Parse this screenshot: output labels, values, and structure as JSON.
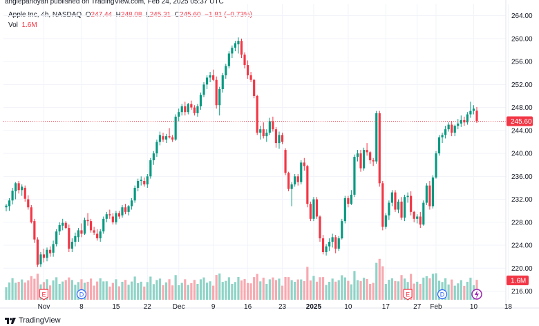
{
  "header": {
    "publisher": "anglepanoyan published on TradingView.com, Feb 24, 2025 05:37 UTC"
  },
  "legend": {
    "symbol": "Apple Inc, 4h, NASDAQ",
    "o_label": "O",
    "o_value": "247.44",
    "h_label": "H",
    "h_value": "248.08",
    "l_label": "L",
    "l_value": "245.31",
    "c_label": "C",
    "c_value": "245.60",
    "change": "−1.81 (−0.73%)",
    "vol_label": "Vol",
    "vol_value": "1.6M"
  },
  "price_axis": {
    "ticks": [
      "264.00",
      "260.00",
      "256.00",
      "252.00",
      "248.00",
      "244.00",
      "240.00",
      "236.00",
      "232.00",
      "228.00",
      "224.00",
      "220.00",
      "216.00"
    ],
    "last_price": "245.60",
    "last_volume": "1.6M"
  },
  "time_axis": {
    "labels": [
      "Nov",
      "8",
      "15",
      "22",
      "Dec",
      "9",
      "16",
      "23",
      "2025",
      "10",
      "17",
      "27",
      "Feb",
      "10",
      "18"
    ]
  },
  "events": [
    "E",
    "D",
    "E",
    "D"
  ],
  "colors": {
    "up": "#089981",
    "down": "#f23645",
    "vol_up": "#8fd3c7",
    "vol_down": "#f7a9b0"
  },
  "chart_data": {
    "type": "candlestick",
    "ylim": [
      214.5,
      266
    ],
    "ohlc": [
      [
        230.6,
        231.2,
        229.9,
        230.9
      ],
      [
        230.8,
        232.2,
        230.0,
        231.8
      ],
      [
        231.8,
        234.0,
        231.1,
        233.5
      ],
      [
        233.4,
        235.0,
        232.0,
        234.8
      ],
      [
        234.8,
        235.2,
        233.0,
        233.6
      ],
      [
        233.6,
        234.6,
        232.6,
        234.2
      ],
      [
        234.0,
        234.4,
        231.6,
        232.1
      ],
      [
        232.0,
        232.7,
        230.2,
        230.6
      ],
      [
        230.6,
        231.0,
        227.8,
        228.0
      ],
      [
        228.2,
        228.6,
        224.4,
        225.0
      ],
      [
        225.0,
        225.4,
        220.2,
        220.6
      ],
      [
        220.7,
        222.8,
        220.2,
        222.4
      ],
      [
        222.4,
        223.4,
        221.0,
        221.8
      ],
      [
        221.8,
        223.6,
        221.2,
        223.2
      ],
      [
        223.2,
        223.8,
        222.0,
        222.6
      ],
      [
        222.7,
        224.8,
        222.0,
        224.2
      ],
      [
        224.2,
        226.8,
        223.8,
        226.4
      ],
      [
        226.4,
        228.0,
        225.8,
        227.5
      ],
      [
        227.4,
        228.6,
        226.6,
        227.9
      ],
      [
        227.9,
        228.2,
        226.8,
        227.0
      ],
      [
        227.0,
        227.6,
        222.8,
        223.4
      ],
      [
        223.4,
        225.2,
        222.8,
        224.6
      ],
      [
        224.6,
        226.2,
        223.8,
        225.6
      ],
      [
        225.4,
        227.0,
        224.6,
        226.6
      ],
      [
        226.6,
        227.8,
        225.4,
        226.0
      ],
      [
        226.0,
        228.8,
        225.8,
        228.4
      ],
      [
        228.4,
        229.6,
        227.4,
        228.2
      ],
      [
        228.2,
        228.6,
        226.2,
        226.6
      ],
      [
        226.6,
        227.2,
        225.8,
        226.2
      ],
      [
        226.0,
        226.8,
        224.8,
        225.2
      ],
      [
        225.2,
        226.8,
        224.6,
        226.4
      ],
      [
        226.4,
        229.0,
        226.0,
        228.6
      ],
      [
        228.6,
        229.8,
        228.0,
        229.4
      ],
      [
        229.4,
        230.2,
        228.6,
        229.2
      ],
      [
        229.0,
        229.6,
        227.6,
        228.0
      ],
      [
        228.0,
        230.0,
        227.6,
        229.6
      ],
      [
        229.6,
        230.0,
        228.6,
        229.0
      ],
      [
        229.2,
        231.0,
        228.8,
        230.6
      ],
      [
        230.6,
        231.2,
        229.4,
        229.8
      ],
      [
        229.8,
        231.0,
        229.2,
        230.8
      ],
      [
        230.8,
        232.2,
        230.2,
        231.8
      ],
      [
        231.8,
        234.4,
        231.4,
        234.0
      ],
      [
        234.0,
        235.6,
        233.4,
        235.2
      ],
      [
        235.2,
        236.0,
        234.4,
        235.4
      ],
      [
        235.2,
        235.8,
        234.2,
        234.6
      ],
      [
        234.6,
        236.4,
        234.0,
        236.0
      ],
      [
        236.0,
        239.2,
        235.6,
        238.8
      ],
      [
        238.8,
        240.4,
        238.0,
        240.0
      ],
      [
        240.0,
        242.4,
        239.4,
        242.0
      ],
      [
        242.0,
        243.8,
        241.4,
        243.2
      ],
      [
        243.0,
        243.6,
        242.0,
        242.4
      ],
      [
        242.4,
        243.4,
        241.8,
        243.0
      ],
      [
        243.0,
        244.4,
        242.6,
        242.8
      ],
      [
        242.8,
        243.2,
        242.0,
        242.4
      ],
      [
        242.4,
        246.8,
        242.2,
        246.4
      ],
      [
        246.4,
        247.8,
        245.6,
        247.2
      ],
      [
        247.2,
        248.6,
        246.6,
        248.2
      ],
      [
        248.2,
        249.0,
        246.6,
        247.2
      ],
      [
        247.2,
        248.8,
        246.8,
        248.6
      ],
      [
        248.6,
        249.2,
        247.6,
        248.0
      ],
      [
        248.0,
        248.4,
        246.6,
        247.0
      ],
      [
        247.0,
        248.6,
        246.4,
        248.2
      ],
      [
        248.2,
        250.6,
        247.6,
        250.2
      ],
      [
        250.2,
        252.4,
        249.8,
        252.0
      ],
      [
        252.0,
        253.6,
        251.2,
        253.2
      ],
      [
        253.2,
        254.2,
        252.4,
        253.6
      ],
      [
        253.6,
        254.6,
        252.6,
        252.8
      ],
      [
        252.8,
        253.4,
        247.8,
        248.4
      ],
      [
        248.4,
        251.6,
        246.6,
        251.2
      ],
      [
        251.2,
        254.0,
        250.6,
        253.6
      ],
      [
        253.6,
        255.6,
        253.0,
        255.2
      ],
      [
        255.2,
        257.8,
        254.8,
        257.4
      ],
      [
        257.4,
        258.8,
        256.6,
        258.4
      ],
      [
        258.4,
        259.6,
        257.8,
        259.2
      ],
      [
        259.0,
        260.2,
        257.4,
        259.6
      ],
      [
        259.6,
        260.0,
        256.6,
        257.2
      ],
      [
        257.2,
        257.6,
        254.8,
        255.4
      ],
      [
        255.4,
        256.2,
        253.0,
        253.6
      ],
      [
        253.6,
        254.2,
        252.4,
        252.8
      ],
      [
        252.8,
        253.0,
        249.6,
        250.0
      ],
      [
        250.0,
        250.2,
        243.2,
        243.6
      ],
      [
        243.6,
        244.8,
        242.4,
        244.2
      ],
      [
        244.2,
        245.4,
        242.6,
        243.0
      ],
      [
        243.0,
        244.2,
        242.0,
        243.6
      ],
      [
        243.6,
        246.2,
        243.2,
        245.6
      ],
      [
        245.6,
        246.4,
        243.8,
        244.2
      ],
      [
        244.2,
        244.6,
        241.0,
        241.8
      ],
      [
        241.8,
        243.8,
        240.8,
        243.2
      ],
      [
        243.2,
        243.6,
        241.6,
        242.0
      ],
      [
        240.6,
        240.9,
        236.2,
        236.6
      ],
      [
        236.6,
        236.8,
        233.4,
        233.8
      ],
      [
        233.8,
        235.0,
        230.8,
        234.6
      ],
      [
        234.6,
        236.4,
        234.2,
        236.0
      ],
      [
        236.0,
        236.4,
        234.4,
        235.0
      ],
      [
        235.0,
        238.8,
        234.6,
        238.4
      ],
      [
        238.4,
        239.2,
        237.0,
        237.8
      ],
      [
        237.8,
        238.0,
        230.6,
        231.2
      ],
      [
        231.2,
        231.6,
        228.2,
        228.6
      ],
      [
        228.6,
        232.4,
        228.2,
        232.0
      ],
      [
        232.0,
        232.4,
        228.6,
        229.0
      ],
      [
        229.0,
        229.2,
        224.6,
        225.2
      ],
      [
        225.2,
        225.8,
        222.4,
        222.8
      ],
      [
        222.8,
        224.2,
        222.2,
        223.8
      ],
      [
        223.8,
        225.2,
        223.0,
        224.6
      ],
      [
        224.6,
        226.0,
        223.6,
        225.4
      ],
      [
        225.4,
        225.8,
        222.6,
        223.4
      ],
      [
        223.4,
        225.6,
        223.0,
        225.2
      ],
      [
        225.2,
        228.6,
        225.0,
        228.2
      ],
      [
        228.2,
        232.6,
        227.8,
        232.2
      ],
      [
        232.2,
        232.6,
        230.6,
        231.2
      ],
      [
        231.2,
        233.6,
        231.0,
        232.8
      ],
      [
        232.8,
        239.8,
        232.4,
        239.4
      ],
      [
        239.4,
        240.6,
        238.6,
        240.0
      ],
      [
        240.0,
        240.6,
        236.8,
        237.4
      ],
      [
        237.4,
        241.0,
        237.0,
        240.6
      ],
      [
        240.6,
        241.8,
        239.6,
        240.2
      ],
      [
        240.2,
        240.4,
        238.2,
        238.8
      ],
      [
        238.8,
        239.2,
        237.8,
        238.6
      ],
      [
        238.6,
        247.4,
        238.2,
        247.0
      ],
      [
        247.0,
        247.4,
        234.2,
        234.8
      ],
      [
        234.8,
        235.2,
        226.6,
        227.2
      ],
      [
        227.2,
        229.6,
        226.8,
        229.2
      ],
      [
        229.2,
        231.8,
        228.4,
        231.4
      ],
      [
        231.4,
        233.6,
        230.8,
        233.2
      ],
      [
        233.2,
        233.6,
        229.8,
        230.2
      ],
      [
        230.2,
        232.0,
        229.6,
        231.6
      ],
      [
        231.6,
        232.4,
        228.4,
        228.8
      ],
      [
        228.8,
        232.8,
        228.2,
        232.4
      ],
      [
        232.4,
        233.2,
        231.4,
        232.6
      ],
      [
        232.6,
        233.4,
        229.2,
        229.8
      ],
      [
        229.8,
        230.0,
        228.0,
        228.6
      ],
      [
        228.6,
        229.4,
        227.8,
        229.0
      ],
      [
        229.0,
        229.8,
        227.0,
        227.6
      ],
      [
        227.6,
        231.8,
        227.4,
        231.4
      ],
      [
        231.4,
        234.8,
        231.0,
        234.4
      ],
      [
        234.4,
        235.2,
        230.2,
        230.8
      ],
      [
        230.8,
        236.2,
        230.4,
        235.8
      ],
      [
        235.8,
        240.4,
        235.6,
        240.0
      ],
      [
        240.0,
        243.2,
        239.6,
        242.8
      ],
      [
        242.8,
        243.6,
        241.8,
        243.2
      ],
      [
        243.2,
        244.8,
        242.6,
        244.2
      ],
      [
        244.2,
        245.4,
        243.8,
        245.0
      ],
      [
        245.0,
        245.6,
        243.0,
        243.6
      ],
      [
        243.6,
        245.0,
        243.0,
        244.8
      ],
      [
        244.8,
        246.0,
        244.2,
        245.2
      ],
      [
        245.2,
        246.6,
        244.6,
        245.8
      ],
      [
        245.8,
        246.4,
        244.8,
        245.4
      ],
      [
        245.4,
        247.2,
        245.0,
        246.8
      ],
      [
        246.8,
        249.0,
        246.2,
        247.4
      ],
      [
        247.4,
        248.4,
        246.8,
        247.8
      ],
      [
        247.44,
        248.08,
        245.31,
        245.6
      ]
    ],
    "volume_events": [
      {
        "label": "E",
        "bar": 12
      },
      {
        "label": "D",
        "bar": 24
      },
      {
        "label": "E",
        "bar": 128
      },
      {
        "label": "D",
        "bar": 139
      }
    ]
  }
}
